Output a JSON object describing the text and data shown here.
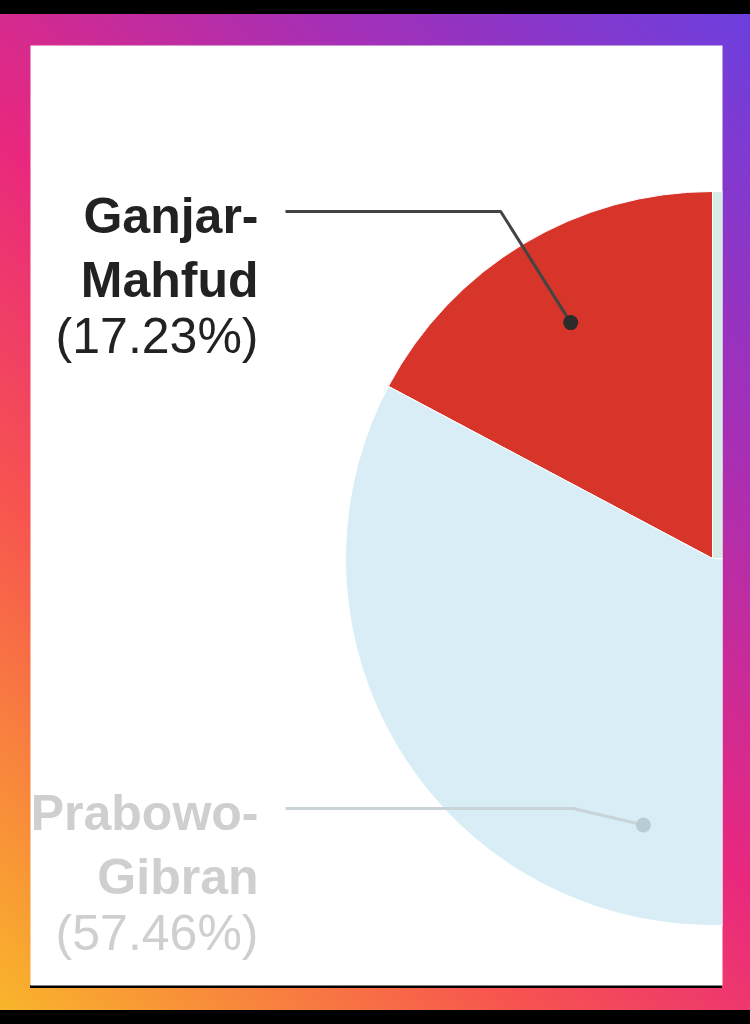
{
  "chart_data": {
    "type": "pie",
    "categories": [
      "Ganjar-Mahfud",
      "Prabowo-Gibran",
      null
    ],
    "values": [
      17.23,
      57.46,
      25.31
    ],
    "colors": [
      "#d7342a",
      "#d9edf7",
      "#d6ece5"
    ],
    "value_labels": [
      "(17.23%)",
      "(57.46%)",
      null
    ]
  }
}
